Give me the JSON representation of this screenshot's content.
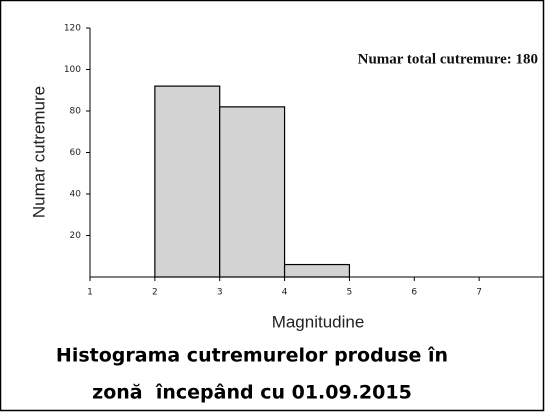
{
  "chart_data": {
    "type": "histogram",
    "annotation": "Numar total cutremure: 180",
    "xlabel": "Magnitudine",
    "ylabel": "Numar cutremure",
    "bins": [
      2,
      3,
      4,
      5
    ],
    "values": [
      92,
      82,
      6
    ],
    "color": "#d3d3d3",
    "xlim": [
      1,
      8
    ],
    "xticks": [
      1,
      2,
      3,
      4,
      5,
      6,
      7
    ],
    "ylim": [
      0,
      120
    ],
    "yticks": [
      20,
      40,
      60,
      80,
      100,
      120
    ]
  },
  "caption": [
    "Histograma cutremurelor produse în",
    "zonă  începând cu 01.09.2015"
  ]
}
